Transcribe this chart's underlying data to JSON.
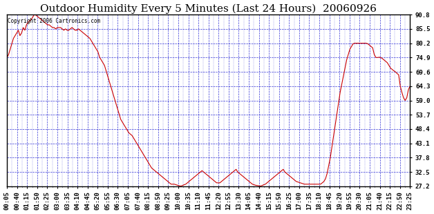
{
  "title": "Outdoor Humidity Every 5 Minutes (Last 24 Hours)  20060926",
  "copyright": "Copyright 2006 Cartronics.com",
  "y_tick_labels": [
    27.2,
    32.5,
    37.8,
    43.1,
    48.4,
    53.7,
    59.0,
    64.3,
    69.6,
    74.9,
    80.2,
    85.5,
    90.8
  ],
  "y_min": 27.2,
  "y_max": 90.8,
  "x_labels": [
    "00:05",
    "00:40",
    "01:15",
    "01:50",
    "02:25",
    "03:00",
    "03:35",
    "04:10",
    "04:45",
    "05:20",
    "05:55",
    "06:30",
    "07:05",
    "07:40",
    "08:15",
    "08:50",
    "09:25",
    "10:00",
    "10:35",
    "11:10",
    "11:45",
    "12:20",
    "12:55",
    "13:30",
    "14:05",
    "14:40",
    "15:15",
    "15:50",
    "16:25",
    "17:00",
    "17:35",
    "18:10",
    "18:45",
    "19:20",
    "19:55",
    "20:30",
    "21:05",
    "21:40",
    "22:15",
    "22:50",
    "23:25"
  ],
  "line_color": "#cc0000",
  "grid_color": "#0000cc",
  "bg_color": "#ffffff",
  "plot_bg_color": "#ffffff",
  "title_fontsize": 11,
  "tick_fontsize": 6.5,
  "humidity_data": [
    74.9,
    76,
    78,
    80,
    82,
    83,
    84,
    85,
    83,
    84,
    86,
    85,
    87,
    88,
    88.5,
    89,
    90,
    91,
    90.5,
    90,
    89.5,
    89,
    88.5,
    88,
    87.5,
    87,
    87,
    86.5,
    86,
    86,
    85.5,
    86,
    86,
    86,
    85.5,
    85,
    85.5,
    85,
    85,
    85.5,
    86,
    85.5,
    85,
    85,
    85.5,
    85,
    84.5,
    84,
    83.5,
    83,
    82.5,
    82,
    81,
    80,
    79,
    78,
    77,
    75,
    74,
    73,
    72,
    70,
    68,
    66,
    64,
    62,
    60,
    58,
    56,
    54,
    52,
    51,
    50,
    49,
    48,
    47,
    46.5,
    46,
    45,
    44,
    43,
    42,
    41,
    40,
    39,
    38,
    37,
    36,
    35,
    34,
    33.5,
    33,
    32.5,
    32,
    31.5,
    31,
    30.5,
    30,
    29.5,
    29,
    28.5,
    28,
    28,
    28,
    27.8,
    27.6,
    27.4,
    27.3,
    27.5,
    27.8,
    28,
    28.5,
    29,
    29.5,
    30,
    30.5,
    31,
    31.5,
    32,
    32.5,
    33,
    32.5,
    32,
    31.5,
    31,
    30.5,
    30,
    29.5,
    29,
    28.5,
    28.5,
    28.5,
    29,
    29.5,
    30,
    30.5,
    31,
    31.5,
    32,
    32.5,
    33,
    33.5,
    32.5,
    32,
    31.5,
    31,
    30.5,
    30,
    29.5,
    29,
    28.5,
    28,
    27.8,
    27.6,
    27.5,
    27.4,
    27.3,
    27.5,
    27.8,
    28,
    28.5,
    29,
    29.5,
    30,
    30.5,
    31,
    31.5,
    32,
    32.5,
    33,
    33.5,
    32.5,
    32,
    31.5,
    31,
    30.5,
    30,
    29.5,
    29,
    28.8,
    28.6,
    28.4,
    28.2,
    28,
    28,
    28,
    28,
    28,
    28,
    28,
    28,
    28,
    28,
    28,
    28.5,
    29,
    30,
    32,
    35,
    38,
    42,
    46,
    50,
    54,
    58,
    62,
    65,
    68,
    71,
    74,
    76,
    78,
    79,
    80,
    80.2,
    80.2,
    80.2,
    80.2,
    80.2,
    80.2,
    80.2,
    80.2,
    80,
    79.5,
    79,
    78.5,
    76,
    74.9,
    74.9,
    75,
    74.9,
    74.5,
    74,
    73.5,
    73,
    72,
    71,
    70.5,
    70,
    69.6,
    69,
    68.5,
    64.3,
    62,
    60,
    59,
    60,
    63,
    64.3
  ]
}
